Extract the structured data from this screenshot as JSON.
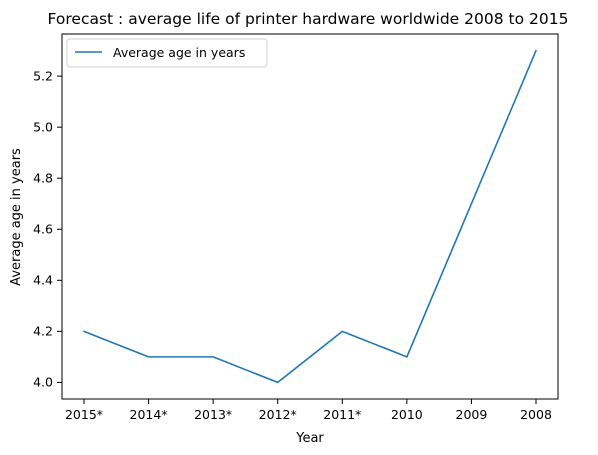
{
  "chart_data": {
    "type": "line",
    "title": "Forecast : average life of printer hardware worldwide 2008 to 2015",
    "xlabel": "Year",
    "ylabel": "Average age in years",
    "categories": [
      "2015*",
      "2014*",
      "2013*",
      "2012*",
      "2011*",
      "2010",
      "2009",
      "2008"
    ],
    "series": [
      {
        "name": "Average age in years",
        "values": [
          4.2,
          4.1,
          4.1,
          4.0,
          4.2,
          4.1,
          4.7,
          5.3
        ],
        "color": "#1f77b4"
      }
    ],
    "ylim": [
      3.935,
      5.365
    ],
    "yticks": [
      4.0,
      4.2,
      4.4,
      4.6,
      4.8,
      5.0,
      5.2
    ],
    "ytick_labels": [
      "4.0",
      "4.2",
      "4.4",
      "4.6",
      "4.8",
      "5.0",
      "5.2"
    ],
    "grid": false,
    "legend_position": "top-left"
  }
}
